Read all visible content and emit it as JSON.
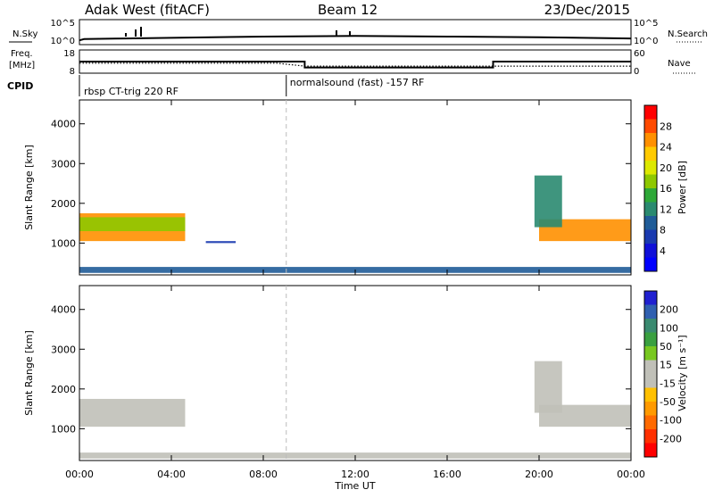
{
  "header": {
    "station": "Adak West (fitACF)",
    "beam": "Beam 12",
    "date": "23/Dec/2015"
  },
  "panels": {
    "nsky": {
      "left_label": "N.Sky",
      "left_ticks": [
        "10^5",
        "10^0"
      ],
      "right_label": "N.Search",
      "right_ticks": [
        "10^5",
        "10^0"
      ]
    },
    "freq": {
      "left_label_1": "Freq.",
      "left_label_2": "[MHz]",
      "left_ticks": [
        "18",
        "8"
      ],
      "right_label": "Nave",
      "right_ticks": [
        "60",
        "0"
      ]
    },
    "cpid": {
      "label": "CPID",
      "segments": [
        "rbsp CT-trig 220 RF",
        "normalsound (fast) -157 RF"
      ]
    }
  },
  "colorbars": {
    "power": {
      "label": "Power [dB]",
      "ticks": [
        "28",
        "24",
        "20",
        "16",
        "12",
        "8",
        "4"
      ],
      "colors": [
        "#ff0000",
        "#ff4a00",
        "#ff9000",
        "#ffca00",
        "#dde800",
        "#8ec800",
        "#2ea838",
        "#2a8a70",
        "#205c98",
        "#1a3ab0",
        "#1010d8",
        "#0000ff"
      ]
    },
    "velocity": {
      "label": "Velocity [m s⁻¹]",
      "ticks": [
        "200",
        "100",
        "50",
        "15",
        "-15",
        "-50",
        "-100",
        "-200"
      ],
      "colors": [
        "#2020d0",
        "#3060b0",
        "#3a8a70",
        "#3aa040",
        "#78c820",
        "#c0c0b8",
        "#c0c0b8",
        "#ffc000",
        "#ff9a00",
        "#ff6a00",
        "#ff3000",
        "#ff0000"
      ]
    }
  },
  "xaxis": {
    "label": "Time UT",
    "ticks": [
      "00:00",
      "04:00",
      "08:00",
      "12:00",
      "16:00",
      "20:00",
      "00:00"
    ]
  },
  "chart_data": {
    "type": "heatmap",
    "x_unit": "UT hours",
    "x_range": [
      0,
      24
    ],
    "y_label": "Slant Range [km]",
    "y_range": [
      200,
      4600
    ],
    "y_ticks": [
      1000,
      2000,
      3000,
      4000
    ],
    "cpid_change_ut": 9.0,
    "nsky_trace": {
      "x": [
        0,
        0.2,
        2,
        4,
        8,
        12,
        16,
        20,
        24
      ],
      "y": [
        0.2,
        0.3,
        0.35,
        0.4,
        0.5,
        0.55,
        0.5,
        0.45,
        0.35
      ]
    },
    "freq_trace": {
      "x": [
        0,
        9.8,
        9.8,
        18.0,
        18.0,
        24
      ],
      "y": [
        13.0,
        13.0,
        10.0,
        10.0,
        13.0,
        13.0
      ]
    },
    "nave_trace": {
      "x": [
        0,
        8.6,
        9.8,
        18.0,
        24
      ],
      "y": [
        25,
        25,
        16,
        16,
        16
      ]
    },
    "power_echoes": [
      {
        "t_start": 0.0,
        "t_end": 4.6,
        "r_start": 1050,
        "r_end": 1750,
        "value": 24
      },
      {
        "t_start": 0.0,
        "t_end": 4.6,
        "r_start": 1300,
        "r_end": 1650,
        "value": 16
      },
      {
        "t_start": 20.0,
        "t_end": 24.0,
        "r_start": 1050,
        "r_end": 1600,
        "value": 24
      },
      {
        "t_start": 19.8,
        "t_end": 21.0,
        "r_start": 1400,
        "r_end": 2700,
        "value": 12
      },
      {
        "t_start": 5.5,
        "t_end": 6.8,
        "r_start": 1000,
        "r_end": 1050,
        "value": 6
      },
      {
        "t_start": 0.0,
        "t_end": 24.0,
        "r_start": 250,
        "r_end": 400,
        "value": 8
      }
    ],
    "velocity_echoes": [
      {
        "t_start": 0.0,
        "t_end": 4.6,
        "r_start": 1050,
        "r_end": 1750,
        "value": 0
      },
      {
        "t_start": 20.0,
        "t_end": 24.0,
        "r_start": 1050,
        "r_end": 1600,
        "value": 0
      },
      {
        "t_start": 19.8,
        "t_end": 21.0,
        "r_start": 1400,
        "r_end": 2700,
        "value": 30
      },
      {
        "t_start": 0.0,
        "t_end": 24.0,
        "r_start": 250,
        "r_end": 400,
        "value": -40
      }
    ]
  }
}
